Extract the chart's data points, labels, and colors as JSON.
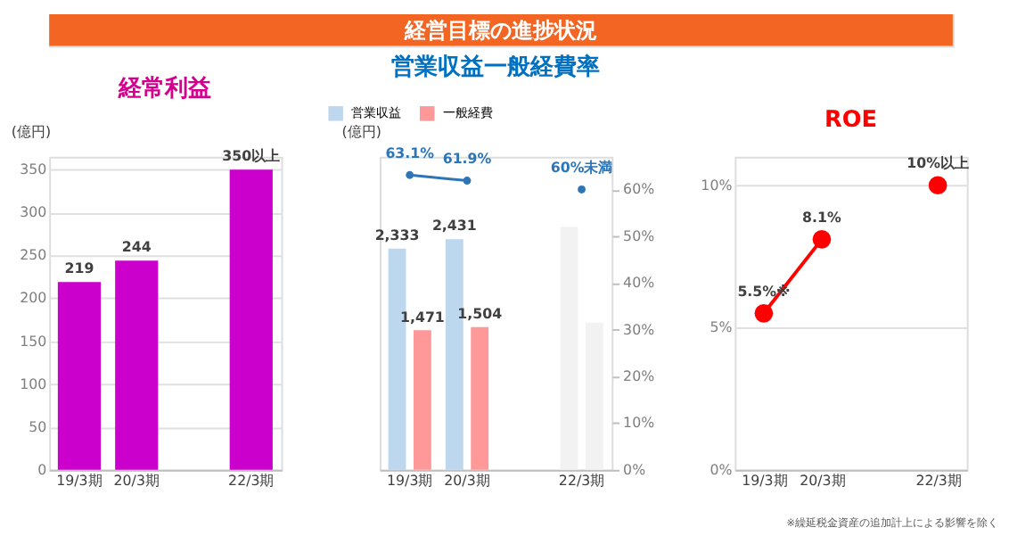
{
  "chart_data": [
    {
      "type": "other",
      "title": "経営目標の進捗状況",
      "color": "#f26522"
    },
    {
      "type": "bar",
      "title": "経常利益",
      "color": "#d6008f",
      "ylabel": "(億円)",
      "categories": [
        "19/3期",
        "20/3期",
        null,
        "22/3期"
      ],
      "series": [
        {
          "color": "#cc00cc",
          "values": [
            219,
            244,
            null,
            350
          ],
          "value_labels": [
            "219",
            "244",
            null,
            "350以上"
          ]
        }
      ],
      "ylim": [
        0,
        365
      ],
      "yticks": [
        0,
        50,
        100,
        150,
        200,
        250,
        300,
        350
      ],
      "grid": "y"
    },
    {
      "type": "bar",
      "title": "営業収益一般経費率",
      "color": "#0070c0",
      "ylabel": "(億円)",
      "categories": [
        "19/3期",
        "20/3期",
        null,
        "22/3期"
      ],
      "series": [
        {
          "name": "営業収益",
          "color": "#bdd7ee",
          "values": [
            2333,
            2431,
            null,
            2560
          ],
          "colors": [
            "#bdd7ee",
            "#bdd7ee",
            null,
            "#f2f2f2"
          ],
          "value_labels": [
            "2,333",
            "2,431",
            null,
            null
          ]
        },
        {
          "name": "一般経費",
          "color": "#ff9999",
          "values": [
            1471,
            1504,
            null,
            1553
          ],
          "colors": [
            "#ff9999",
            "#ff9999",
            null,
            "#f2f2f2"
          ],
          "value_labels": [
            "1,471",
            "1,504",
            null,
            null
          ]
        },
        {
          "type": "line",
          "axis": "y2",
          "color": "#2e75b6",
          "values": [
            63.1,
            61.9,
            null,
            null
          ],
          "value_labels": [
            "63.1%",
            "61.9%",
            null,
            null
          ]
        },
        {
          "type": "scatter",
          "axis": "y2",
          "color": "#2e75b6",
          "values": [
            null,
            null,
            null,
            60
          ],
          "value_labels": [
            null,
            null,
            null,
            "60%未満"
          ]
        }
      ],
      "ylim": [
        0,
        3300
      ],
      "y2lim": [
        0,
        67
      ],
      "y2ticks": [
        {
          "value": 0,
          "label": "0%"
        },
        {
          "value": 10,
          "label": "10%"
        },
        {
          "value": 20,
          "label": "20%"
        },
        {
          "value": 30,
          "label": "30%"
        },
        {
          "value": 40,
          "label": "40%"
        },
        {
          "value": 50,
          "label": "50%"
        },
        {
          "value": 60,
          "label": "60%"
        }
      ],
      "legend": "top left",
      "marker": "circle"
    },
    {
      "type": "line",
      "title": "ROE",
      "color": "#ff0000",
      "categories": [
        "19/3期",
        "20/3期",
        null,
        "22/3期"
      ],
      "series": [
        {
          "color": "#ff0000",
          "values": [
            5.5,
            8.1,
            null,
            null
          ],
          "value_labels": [
            "5.5%※",
            "8.1%",
            null,
            null
          ]
        },
        {
          "type": "scatter",
          "color": "#ff0000",
          "values": [
            null,
            null,
            null,
            10
          ],
          "value_labels": [
            null,
            null,
            null,
            "10%以上"
          ]
        }
      ],
      "ylim": [
        0,
        11
      ],
      "yticks": [
        {
          "value": 0,
          "label": "0%"
        },
        {
          "value": 5,
          "label": "5%"
        },
        {
          "value": 10,
          "label": "10%"
        }
      ],
      "grid": "y",
      "marker": "circle",
      "annotations": [
        "※繰延税金資産の追加計上による影響を除く"
      ]
    }
  ]
}
